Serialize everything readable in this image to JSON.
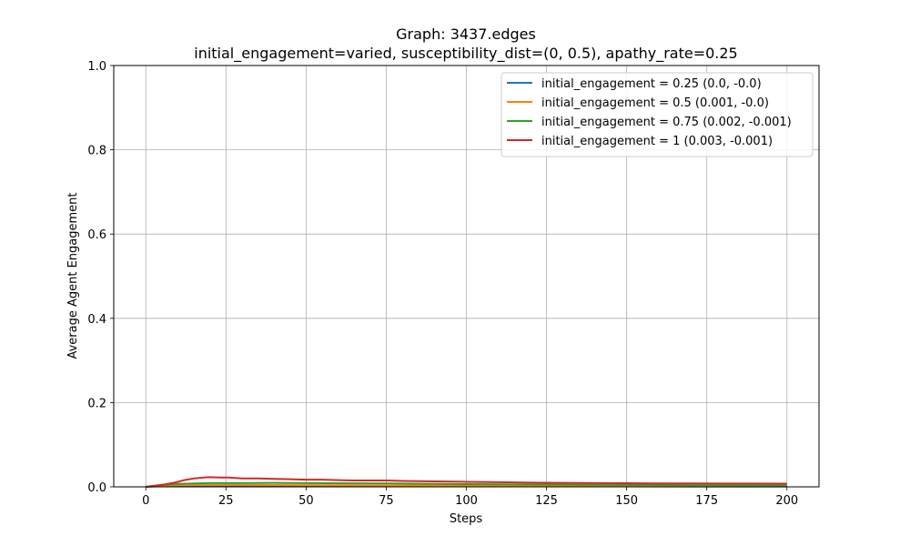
{
  "chart_data": {
    "type": "line",
    "title": "Graph: 3437.edges",
    "subtitle": "initial_engagement=varied, susceptibility_dist=(0, 0.5), apathy_rate=0.25",
    "xlabel": "Steps",
    "ylabel": "Average Agent Engagement",
    "xlim": [
      -10,
      210
    ],
    "ylim": [
      0,
      1.0
    ],
    "xticks": [
      0,
      25,
      50,
      75,
      100,
      125,
      150,
      175,
      200
    ],
    "xtick_labels": [
      "0",
      "25",
      "50",
      "75",
      "100",
      "125",
      "150",
      "175",
      "200"
    ],
    "yticks": [
      0,
      0.2,
      0.4,
      0.6,
      0.8,
      1.0
    ],
    "ytick_labels": [
      "0.0",
      "0.2",
      "0.4",
      "0.6",
      "0.8",
      "1.0"
    ],
    "grid": true,
    "legend_position": "top-right",
    "series": [
      {
        "name": "initial_engagement = 0.25 (0.0, -0.0)",
        "color": "#1f77b4",
        "points": [
          [
            0,
            0.0
          ],
          [
            5,
            0.0015
          ],
          [
            10,
            0.002
          ],
          [
            20,
            0.0022
          ],
          [
            30,
            0.002
          ],
          [
            50,
            0.0018
          ],
          [
            75,
            0.0015
          ],
          [
            100,
            0.0013
          ],
          [
            125,
            0.0011
          ],
          [
            150,
            0.001
          ],
          [
            175,
            0.0009
          ],
          [
            200,
            0.0008
          ]
        ]
      },
      {
        "name": "initial_engagement = 0.5 (0.001, -0.0)",
        "color": "#ff7f0e",
        "points": [
          [
            0,
            0.0
          ],
          [
            5,
            0.003
          ],
          [
            10,
            0.004
          ],
          [
            20,
            0.0045
          ],
          [
            30,
            0.0045
          ],
          [
            50,
            0.004
          ],
          [
            75,
            0.0035
          ],
          [
            100,
            0.003
          ],
          [
            125,
            0.0027
          ],
          [
            150,
            0.0024
          ],
          [
            175,
            0.0022
          ],
          [
            200,
            0.002
          ]
        ]
      },
      {
        "name": "initial_engagement = 0.75 (0.002, -0.001)",
        "color": "#2ca02c",
        "points": [
          [
            0,
            0.0
          ],
          [
            5,
            0.004
          ],
          [
            10,
            0.007
          ],
          [
            15,
            0.008
          ],
          [
            20,
            0.009
          ],
          [
            30,
            0.009
          ],
          [
            40,
            0.0095
          ],
          [
            50,
            0.009
          ],
          [
            75,
            0.008
          ],
          [
            100,
            0.0065
          ],
          [
            125,
            0.0055
          ],
          [
            150,
            0.0045
          ],
          [
            175,
            0.004
          ],
          [
            200,
            0.0035
          ]
        ]
      },
      {
        "name": "initial_engagement = 1 (0.003, -0.001)",
        "color": "#d62728",
        "points": [
          [
            0,
            0.0
          ],
          [
            3,
            0.003
          ],
          [
            6,
            0.006
          ],
          [
            9,
            0.01
          ],
          [
            12,
            0.016
          ],
          [
            15,
            0.02
          ],
          [
            18,
            0.022
          ],
          [
            20,
            0.023
          ],
          [
            23,
            0.022
          ],
          [
            26,
            0.022
          ],
          [
            30,
            0.02
          ],
          [
            35,
            0.02
          ],
          [
            40,
            0.019
          ],
          [
            45,
            0.018
          ],
          [
            50,
            0.017
          ],
          [
            55,
            0.017
          ],
          [
            60,
            0.016
          ],
          [
            65,
            0.015
          ],
          [
            70,
            0.015
          ],
          [
            75,
            0.015
          ],
          [
            80,
            0.014
          ],
          [
            90,
            0.013
          ],
          [
            100,
            0.012
          ],
          [
            110,
            0.011
          ],
          [
            120,
            0.01
          ],
          [
            130,
            0.0095
          ],
          [
            140,
            0.009
          ],
          [
            150,
            0.0085
          ],
          [
            160,
            0.008
          ],
          [
            170,
            0.008
          ],
          [
            180,
            0.0078
          ],
          [
            190,
            0.0077
          ],
          [
            200,
            0.0075
          ]
        ]
      }
    ]
  }
}
